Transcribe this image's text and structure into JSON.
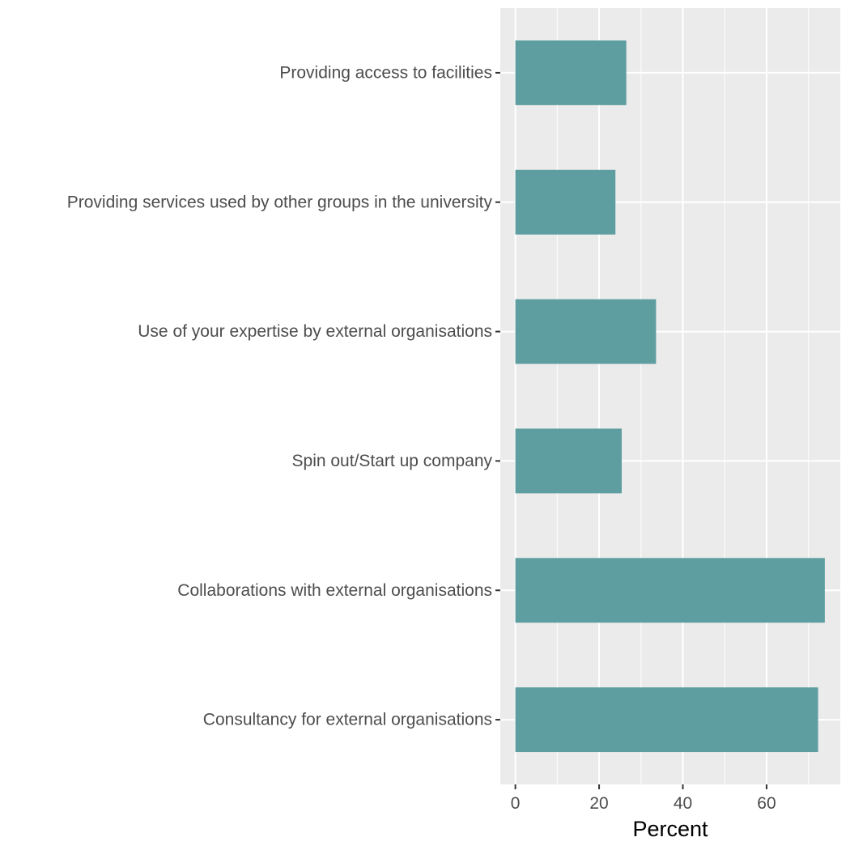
{
  "chart_data": {
    "type": "bar",
    "orientation": "horizontal",
    "categories": [
      "Providing access to facilities",
      "Providing services used by other groups in the university",
      "Use of your expertise by external organisations",
      "Spin out/Start up company",
      "Collaborations with external organisations",
      "Consultancy for external organisations"
    ],
    "values": [
      26.5,
      23.9,
      33.6,
      25.4,
      73.9,
      72.3
    ],
    "title": "",
    "xlabel": "Percent",
    "ylabel": "",
    "xlim": [
      -3.6,
      77.6
    ],
    "xticks": [
      0,
      20,
      40,
      60
    ],
    "xtick_labels": [
      "0",
      "20",
      "40",
      "60"
    ],
    "grid": true,
    "colors": {
      "bar": "#5f9ea0",
      "panel": "#ebebeb",
      "grid": "#ffffff",
      "axis_text": "#4d4d4d",
      "axis_title": "#000000"
    }
  }
}
